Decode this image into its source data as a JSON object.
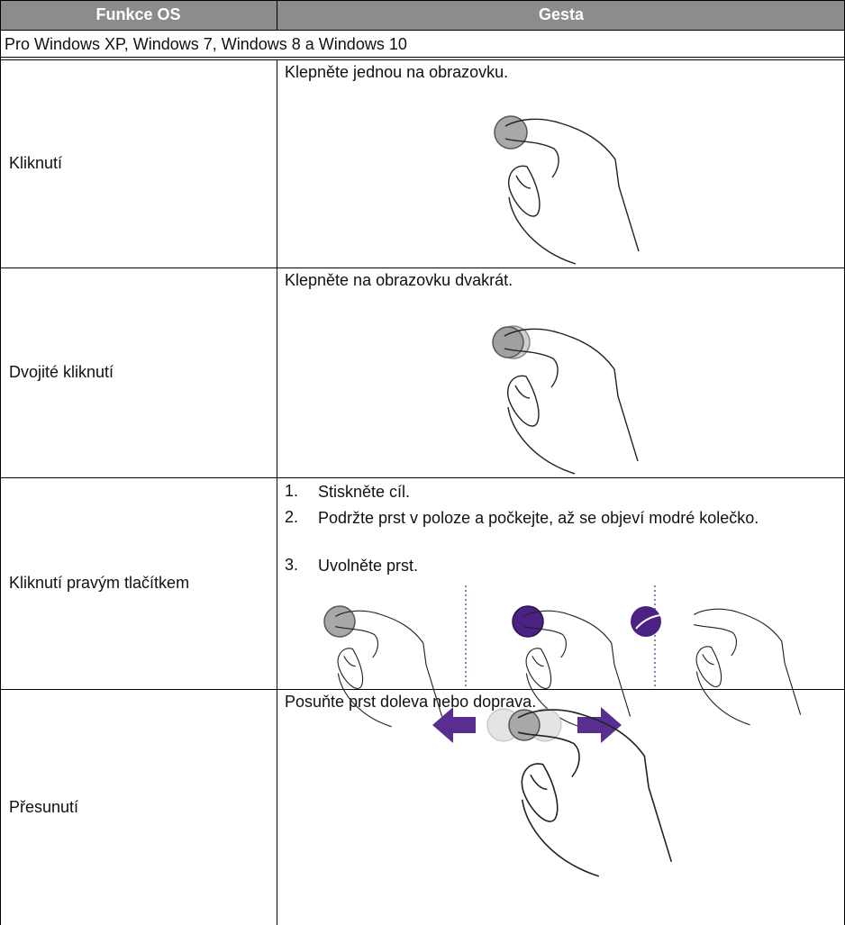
{
  "table": {
    "header": [
      "Funkce OS",
      "Gesta"
    ],
    "section": "Pro Windows XP, Windows 7, Windows 8 a Windows 10",
    "rows": [
      {
        "function": "Kliknutí",
        "gesture": "Klepněte jednou na obrazovku."
      },
      {
        "function": "Dvojité kliknutí",
        "gesture": "Klepněte na obrazovku dvakrát."
      },
      {
        "function": "Kliknutí pravým tlačítkem",
        "steps": [
          {
            "number": "1.",
            "text": "Stiskněte cíl."
          },
          {
            "number": "2.",
            "text": "Podržte prst v poloze a počkejte, až se objeví modré kolečko."
          },
          {
            "number": "3.",
            "text": "Uvolněte prst."
          }
        ]
      },
      {
        "function": "Přesunutí",
        "gesture": "Posuňte prst doleva nebo doprava."
      }
    ]
  }
}
